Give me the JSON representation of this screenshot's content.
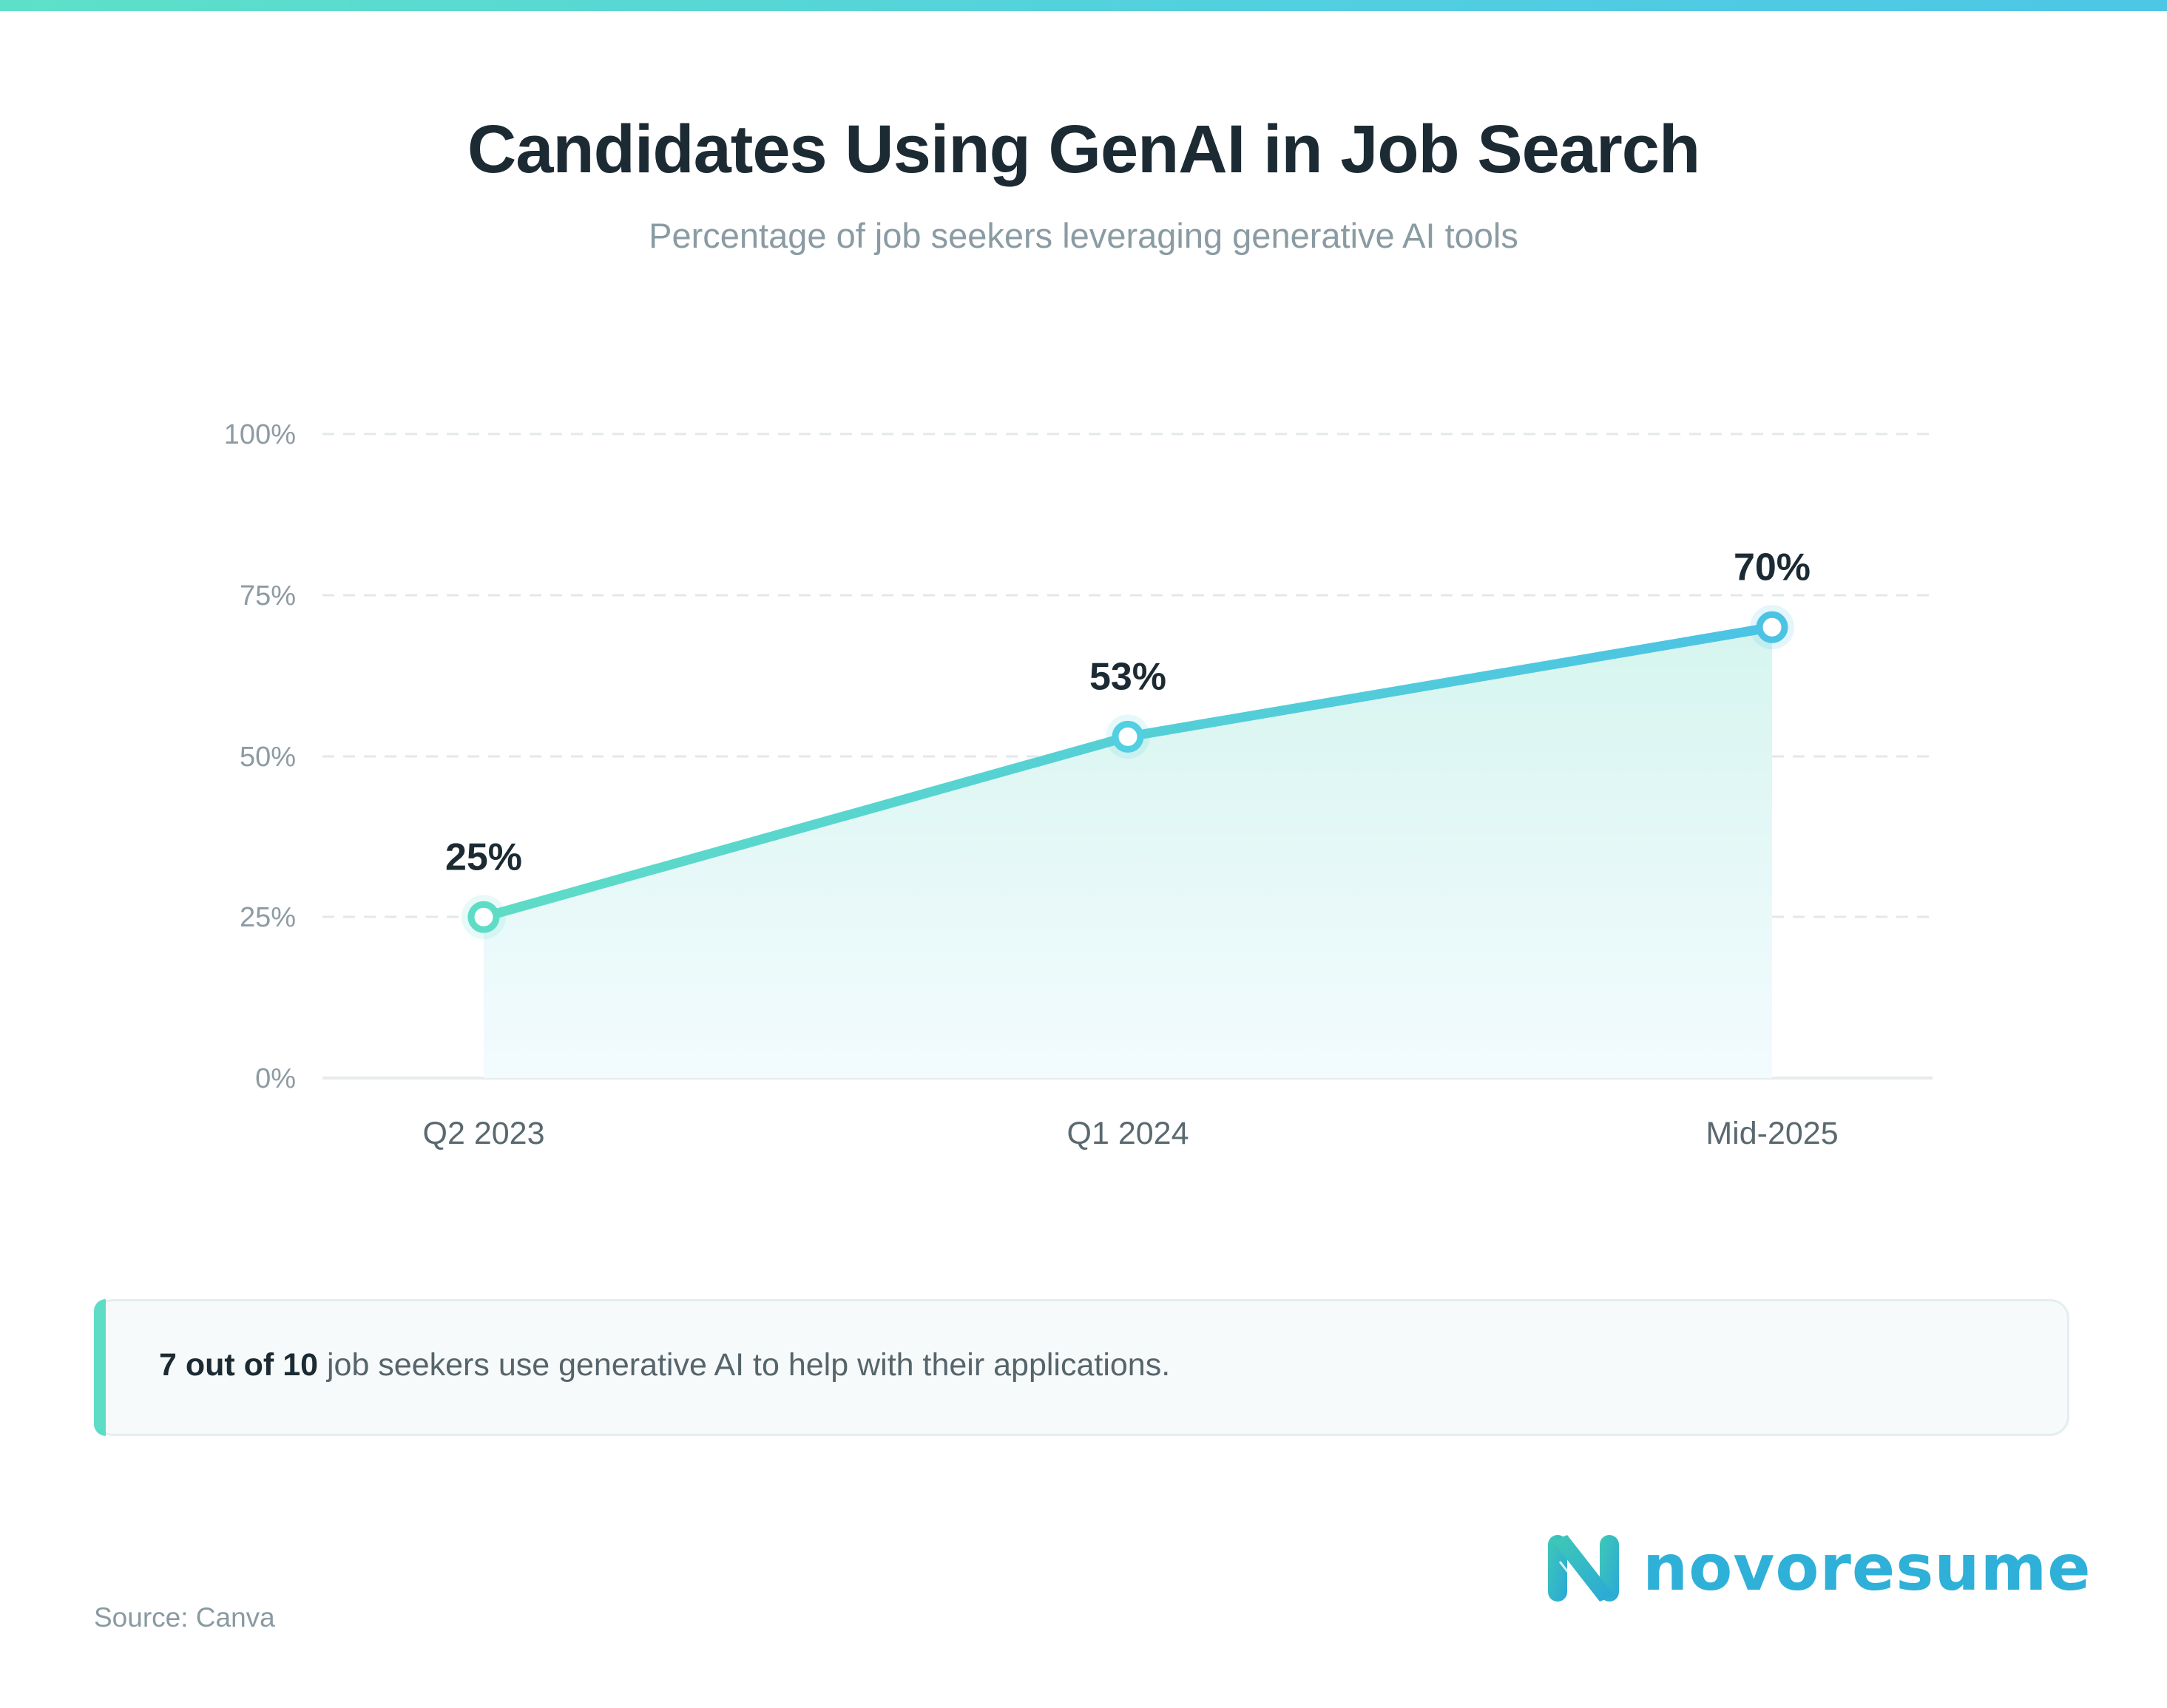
{
  "header": {
    "title": "Candidates Using GenAI in Job Search",
    "subtitle": "Percentage of job seekers leveraging generative AI tools"
  },
  "chart_data": {
    "type": "line",
    "title": "Candidates Using GenAI in Job Search",
    "subtitle": "Percentage of job seekers leveraging generative AI tools",
    "categories": [
      "Q2 2023",
      "Q1 2024",
      "Mid-2025"
    ],
    "values": [
      25,
      53,
      70
    ],
    "data_labels": [
      "25%",
      "53%",
      "70%"
    ],
    "xlabel": "",
    "ylabel": "",
    "ylim": [
      0,
      100
    ],
    "yticks": [
      "0%",
      "25%",
      "50%",
      "75%",
      "100%"
    ],
    "grid": true,
    "grid_style": "dashed",
    "area_fill": true,
    "legend": null,
    "line_color_start": "#5edcc6",
    "line_color_end": "#4cc3e4"
  },
  "callout": {
    "bold": "7 out of 10",
    "text": " job seekers use generative AI to help with their applications.",
    "accent_color": "#5edcc6"
  },
  "brand": {
    "name": "novoresume",
    "color": "#2fb0d8"
  },
  "footer": {
    "source": "Source: Canva"
  }
}
